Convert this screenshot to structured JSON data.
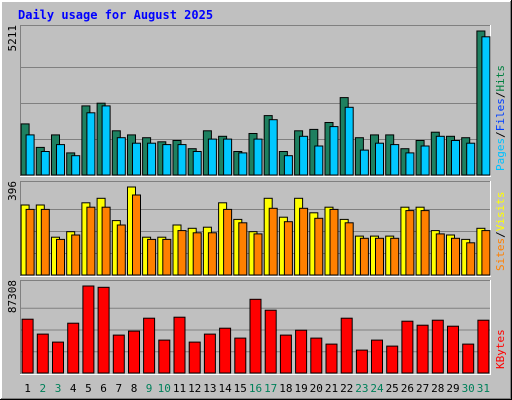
{
  "chart_data": [
    {
      "type": "bar",
      "title": "Daily usage for August 2025",
      "ymax_label": "5211",
      "legend": [
        "Pages",
        "Files",
        "Hits"
      ],
      "legend_colors": [
        "#00c0ff",
        "#0040ff",
        "#008040"
      ],
      "categories": [
        "1",
        "2",
        "3",
        "4",
        "5",
        "6",
        "7",
        "8",
        "9",
        "10",
        "11",
        "12",
        "13",
        "14",
        "15",
        "16",
        "17",
        "18",
        "19",
        "20",
        "21",
        "22",
        "23",
        "24",
        "25",
        "26",
        "27",
        "28",
        "29",
        "30",
        "31"
      ],
      "weekend_days": [
        "2",
        "3",
        "9",
        "10",
        "16",
        "17",
        "23",
        "24",
        "30",
        "31"
      ],
      "ylim": [
        0,
        5211
      ],
      "series": [
        {
          "name": "Hits",
          "color": "#1e8060",
          "values": [
            1850,
            1000,
            1450,
            800,
            2500,
            2600,
            1600,
            1450,
            1350,
            1200,
            1250,
            950,
            1600,
            1400,
            850,
            1500,
            2150,
            850,
            1600,
            1650,
            1900,
            2800,
            1350,
            1450,
            1450,
            950,
            1250,
            1550,
            1400,
            1350,
            5211
          ]
        },
        {
          "name": "Files",
          "color": "#00c8ff",
          "values": [
            1450,
            850,
            1100,
            700,
            2250,
            2500,
            1350,
            1150,
            1150,
            1100,
            1100,
            850,
            1300,
            1300,
            800,
            1300,
            2000,
            700,
            1400,
            1050,
            1750,
            2450,
            900,
            1150,
            1100,
            800,
            1050,
            1400,
            1250,
            1150,
            5000
          ]
        }
      ]
    },
    {
      "type": "bar",
      "ymax_label": "396",
      "legend": [
        "Sites",
        "Visits"
      ],
      "legend_colors": [
        "#ff8000",
        "#ffff00"
      ],
      "categories": [
        "1",
        "2",
        "3",
        "4",
        "5",
        "6",
        "7",
        "8",
        "9",
        "10",
        "11",
        "12",
        "13",
        "14",
        "15",
        "16",
        "17",
        "18",
        "19",
        "20",
        "21",
        "22",
        "23",
        "24",
        "25",
        "26",
        "27",
        "28",
        "29",
        "30",
        "31"
      ],
      "ylim": [
        0,
        396
      ],
      "series": [
        {
          "name": "Visits",
          "color": "#ffff00",
          "values": [
            315,
            315,
            170,
            195,
            325,
            345,
            245,
            396,
            170,
            170,
            225,
            210,
            215,
            325,
            250,
            195,
            345,
            260,
            345,
            280,
            305,
            250,
            175,
            175,
            175,
            305,
            305,
            200,
            180,
            160,
            210
          ]
        },
        {
          "name": "Sites",
          "color": "#ff8000",
          "values": [
            295,
            295,
            160,
            180,
            305,
            305,
            225,
            360,
            160,
            160,
            200,
            190,
            190,
            295,
            235,
            185,
            300,
            240,
            300,
            255,
            295,
            235,
            165,
            165,
            165,
            290,
            290,
            185,
            165,
            145,
            200
          ]
        }
      ]
    },
    {
      "type": "bar",
      "ymax_label": "87308",
      "legend": [
        "KBytes"
      ],
      "legend_colors": [
        "#ff0000"
      ],
      "categories": [
        "1",
        "2",
        "3",
        "4",
        "5",
        "6",
        "7",
        "8",
        "9",
        "10",
        "11",
        "12",
        "13",
        "14",
        "15",
        "16",
        "17",
        "18",
        "19",
        "20",
        "21",
        "22",
        "23",
        "24",
        "25",
        "26",
        "27",
        "28",
        "29",
        "30",
        "31"
      ],
      "ylim": [
        0,
        87308
      ],
      "series": [
        {
          "name": "KBytes",
          "color": "#ff0000",
          "values": [
            54000,
            39000,
            31000,
            50000,
            87308,
            86000,
            38000,
            42000,
            55000,
            33000,
            56000,
            31000,
            39000,
            45000,
            35000,
            74000,
            63000,
            38000,
            43000,
            35000,
            29000,
            55000,
            23000,
            33000,
            27000,
            52000,
            48000,
            53000,
            47000,
            29000,
            53000
          ]
        }
      ]
    }
  ]
}
